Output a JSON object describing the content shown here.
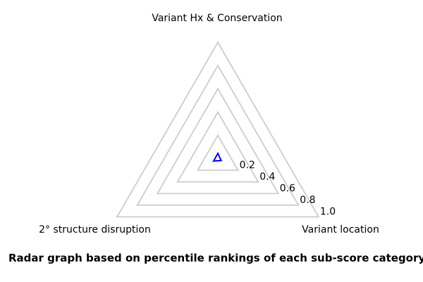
{
  "chart_data": {
    "type": "radar",
    "frame": "triangle",
    "categories": [
      "Variant Hx & Conservation",
      "Variant location",
      "2° structure disruption"
    ],
    "series": [
      {
        "name": "percentile rankings",
        "values": [
          0.045,
          0.033,
          0.042
        ],
        "color": "#0000ff"
      }
    ],
    "ticks": [
      0.2,
      0.4,
      0.6,
      0.8,
      1.0
    ],
    "tick_labels": [
      "0.2",
      "0.4",
      "0.6",
      "0.8",
      "1.0"
    ],
    "range": [
      0,
      1.0
    ],
    "grid": true,
    "grid_color": "#cccccc",
    "text_color": "#000000",
    "background": "#ffffff",
    "legend": "none",
    "caption": "Radar graph based on percentile rankings of each sub-score category"
  }
}
